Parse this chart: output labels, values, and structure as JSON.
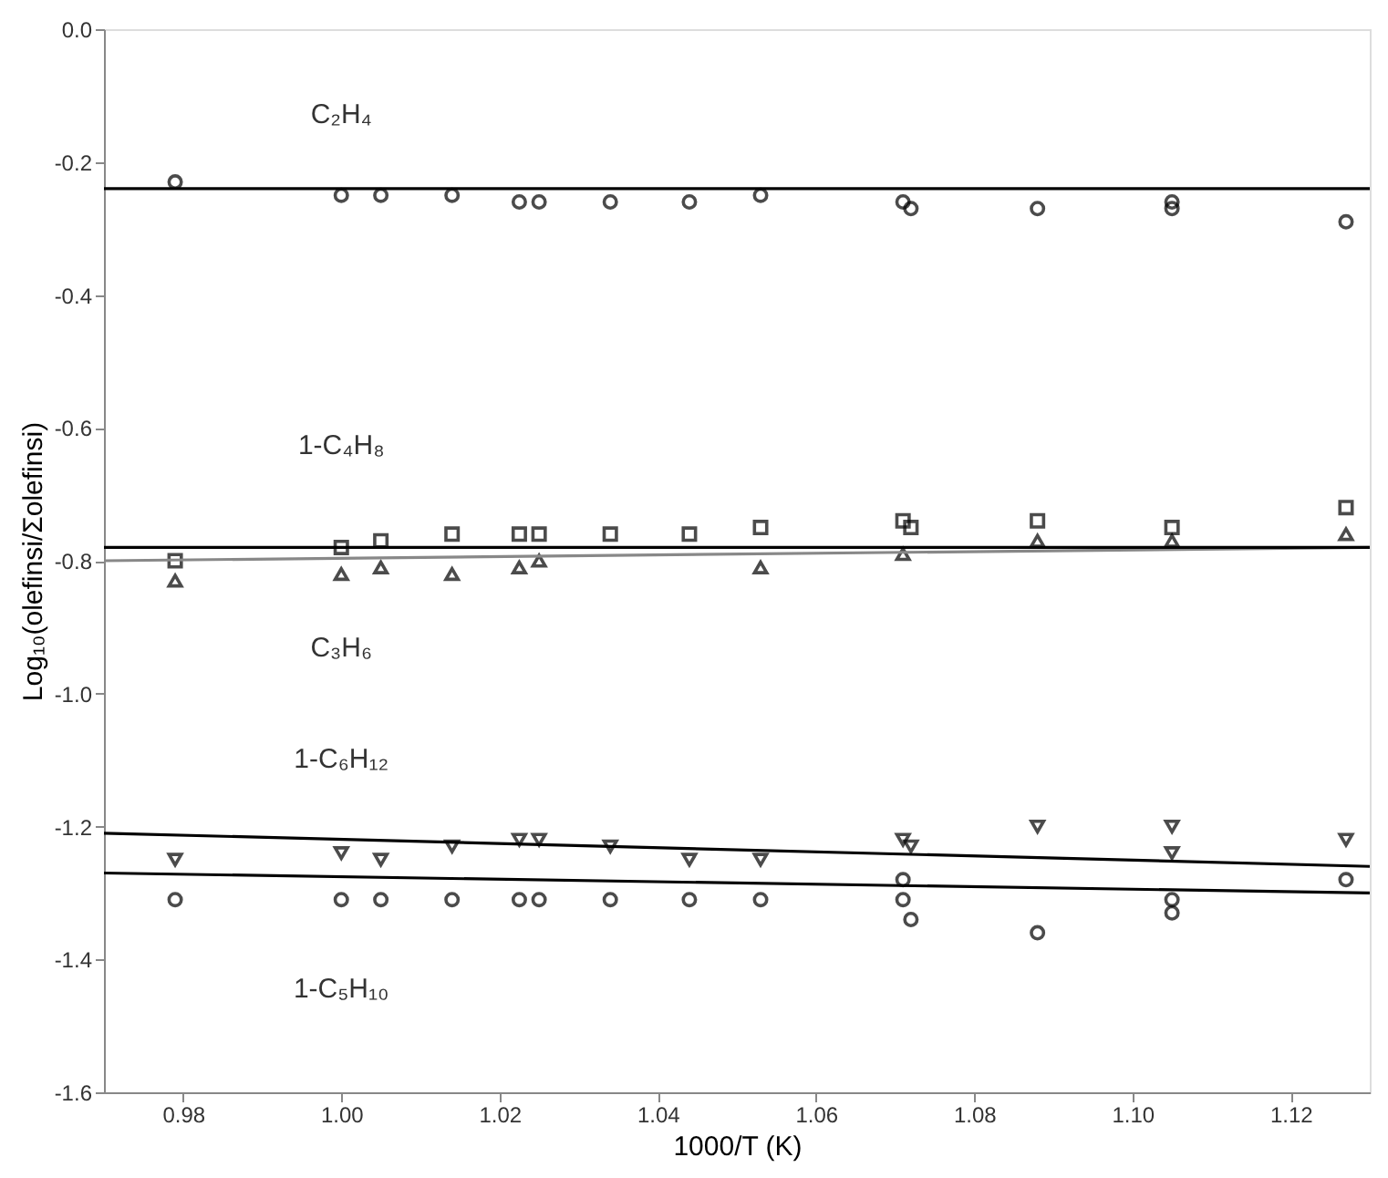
{
  "chart_data": {
    "type": "scatter",
    "xlabel": "1000/T (K)",
    "ylabel": "Log₁₀(olefinsi/Σolefinsi)",
    "xlim": [
      0.97,
      1.13
    ],
    "xticks": [
      0.98,
      {
        "value": 1.0,
        "label": "1.00"
      },
      1.02,
      1.04,
      1.06,
      1.08,
      {
        "value": 1.1,
        "label": "1.10"
      },
      1.12
    ],
    "ylim": [
      -1.6,
      0.0
    ],
    "yticks": [
      -1.6,
      -1.4,
      -1.2,
      {
        "value": -1.0,
        "label": "-1.0"
      },
      -0.8,
      -0.6,
      -0.4,
      -0.2,
      {
        "value": 0.0,
        "label": "0.0"
      }
    ],
    "grid": false,
    "legend": false,
    "series": [
      {
        "name": "C₂H₄",
        "marker": "circle",
        "color": "#000000",
        "x": [
          0.979,
          1.0,
          1.005,
          1.014,
          1.0225,
          1.025,
          1.034,
          1.044,
          1.053,
          1.071,
          1.072,
          1.088,
          1.105,
          1.105,
          1.127
        ],
        "values": [
          -0.23,
          -0.25,
          -0.25,
          -0.25,
          -0.26,
          -0.26,
          -0.26,
          -0.26,
          -0.25,
          -0.26,
          -0.27,
          -0.27,
          -0.27,
          -0.26,
          -0.29
        ]
      },
      {
        "name": "1-C₄H₈",
        "marker": "square",
        "color": "#000000",
        "x": [
          0.979,
          1.0,
          1.005,
          1.014,
          1.0225,
          1.025,
          1.034,
          1.044,
          1.053,
          1.071,
          1.072,
          1.088,
          1.105,
          1.127
        ],
        "values": [
          -0.8,
          -0.78,
          -0.77,
          -0.76,
          -0.76,
          -0.76,
          -0.76,
          -0.76,
          -0.75,
          -0.74,
          -0.75,
          -0.74,
          -0.75,
          -0.72
        ]
      },
      {
        "name": "C₃H₆",
        "marker": "triangle",
        "color": "#000000",
        "x": [
          0.979,
          1.0,
          1.005,
          1.014,
          1.0225,
          1.025,
          1.053,
          1.071,
          1.088,
          1.105,
          1.127
        ],
        "values": [
          -0.83,
          -0.82,
          -0.81,
          -0.82,
          -0.81,
          -0.8,
          -0.81,
          -0.79,
          -0.77,
          -0.77,
          -0.76
        ]
      },
      {
        "name": "1-C₆H₁₂",
        "marker": "triangle-down",
        "color": "#000000",
        "x": [
          0.979,
          1.0,
          1.005,
          1.014,
          1.0225,
          1.025,
          1.034,
          1.044,
          1.053,
          1.071,
          1.072,
          1.088,
          1.105,
          1.105,
          1.127
        ],
        "values": [
          -1.25,
          -1.24,
          -1.25,
          -1.23,
          -1.22,
          -1.22,
          -1.23,
          -1.25,
          -1.25,
          -1.22,
          -1.23,
          -1.2,
          -1.2,
          -1.24,
          -1.22
        ]
      },
      {
        "name": "1-C₅H₁₀",
        "marker": "circle",
        "color": "#000000",
        "x": [
          0.979,
          1.0,
          1.005,
          1.014,
          1.0225,
          1.025,
          1.034,
          1.044,
          1.053,
          1.071,
          1.071,
          1.072,
          1.088,
          1.105,
          1.105,
          1.127
        ],
        "values": [
          -1.31,
          -1.31,
          -1.31,
          -1.31,
          -1.31,
          -1.31,
          -1.31,
          -1.31,
          -1.31,
          -1.28,
          -1.31,
          -1.34,
          -1.36,
          -1.31,
          -1.33,
          -1.28
        ]
      },
      {
        "type": "line",
        "color": "#000000",
        "x": [
          0.97,
          1.13
        ],
        "values": [
          -0.24,
          -0.24
        ]
      },
      {
        "type": "line",
        "color": "#888888",
        "x": [
          0.97,
          1.13
        ],
        "values": [
          -0.8,
          -0.78
        ]
      },
      {
        "type": "line",
        "color": "#000000",
        "x": [
          0.97,
          1.13
        ],
        "values": [
          -0.78,
          -0.78
        ]
      },
      {
        "type": "line",
        "color": "#000000",
        "x": [
          0.97,
          1.13
        ],
        "values": [
          -1.21,
          -1.26
        ]
      },
      {
        "type": "line",
        "color": "#000000",
        "x": [
          0.97,
          1.13
        ],
        "values": [
          -1.27,
          -1.3
        ]
      }
    ]
  }
}
